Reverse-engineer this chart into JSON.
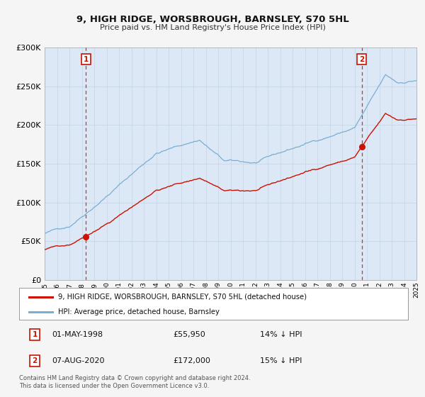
{
  "title": "9, HIGH RIDGE, WORSBROUGH, BARNSLEY, S70 5HL",
  "subtitle": "Price paid vs. HM Land Registry's House Price Index (HPI)",
  "bg_color": "#f5f5f5",
  "plot_bg_color": "#dce8f5",
  "grid_color": "#c8d8e8",
  "hpi_color": "#7aaed4",
  "price_color": "#cc1100",
  "dashed_line_color": "#cc1100",
  "sale1_date_x": 1998.33,
  "sale1_price": 55950,
  "sale2_date_x": 2020.58,
  "sale2_price": 172000,
  "ylim_min": 0,
  "ylim_max": 300000,
  "xlim_min": 1995,
  "xlim_max": 2025,
  "ylabel_ticks": [
    0,
    50000,
    100000,
    150000,
    200000,
    250000,
    300000
  ],
  "ylabel_labels": [
    "£0",
    "£50K",
    "£100K",
    "£150K",
    "£200K",
    "£250K",
    "£300K"
  ],
  "xtick_labels": [
    "1995",
    "1996",
    "1997",
    "1998",
    "1999",
    "2000",
    "2001",
    "2002",
    "2003",
    "2004",
    "2005",
    "2006",
    "2007",
    "2008",
    "2009",
    "2010",
    "2011",
    "2012",
    "2013",
    "2014",
    "2015",
    "2016",
    "2017",
    "2018",
    "2019",
    "2020",
    "2021",
    "2022",
    "2023",
    "2024",
    "2025"
  ],
  "legend_label1": "9, HIGH RIDGE, WORSBROUGH, BARNSLEY, S70 5HL (detached house)",
  "legend_label2": "HPI: Average price, detached house, Barnsley",
  "annotation1_date": "01-MAY-1998",
  "annotation1_price": "£55,950",
  "annotation1_hpi": "14% ↓ HPI",
  "annotation2_date": "07-AUG-2020",
  "annotation2_price": "£172,000",
  "annotation2_hpi": "15% ↓ HPI",
  "footer1": "Contains HM Land Registry data © Crown copyright and database right 2024.",
  "footer2": "This data is licensed under the Open Government Licence v3.0."
}
